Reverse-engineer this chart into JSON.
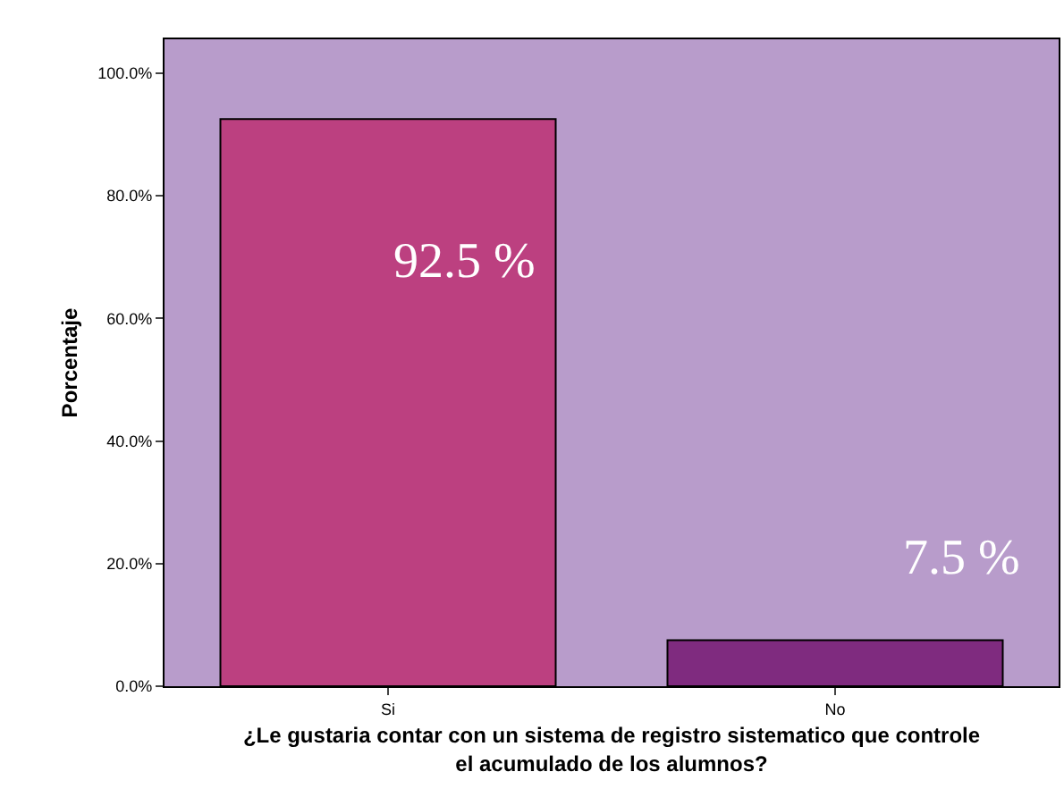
{
  "chart_data": {
    "type": "bar",
    "xlabel": "¿Le gustaria contar con un sistema de registro sistematico que controle\nel acumulado de los alumnos?",
    "ylabel": "Porcentaje",
    "categories": [
      "Si",
      "No"
    ],
    "values": [
      92.5,
      7.5
    ],
    "colors": [
      "#bc4080",
      "#7f2b7f"
    ],
    "value_labels": [
      "92.5 %",
      "7.5 %"
    ],
    "ylim": [
      0,
      105.5
    ],
    "yticks": [
      {
        "value": 0,
        "label": "0.0%"
      },
      {
        "value": 20,
        "label": "20.0%"
      },
      {
        "value": 40,
        "label": "40.0%"
      },
      {
        "value": 60,
        "label": "60.0%"
      },
      {
        "value": 80,
        "label": "80.0%"
      },
      {
        "value": 100,
        "label": "100.0%"
      }
    ],
    "grid": false,
    "legend": false
  }
}
